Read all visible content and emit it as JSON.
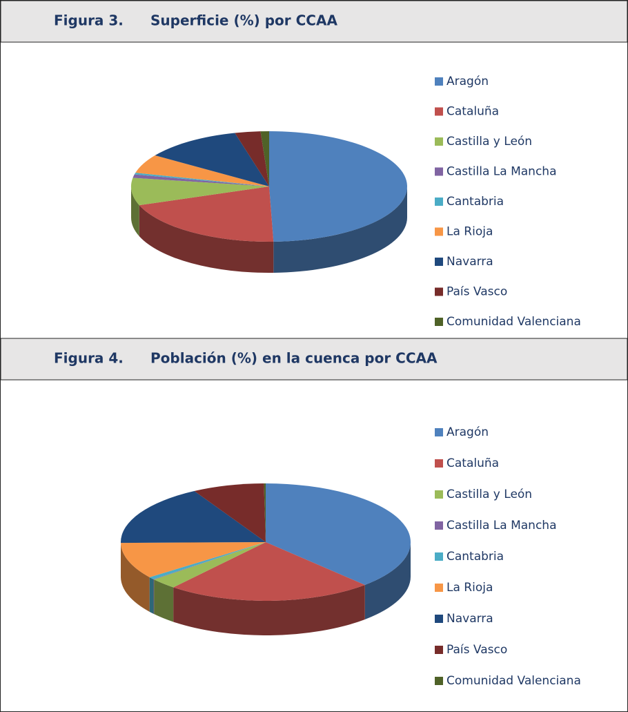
{
  "chart_data": [
    {
      "type": "pie",
      "figure_label": "Figura 3.",
      "title": "Superficie (%) por CCAA",
      "categories": [
        "Aragón",
        "Cataluña",
        "Castilla y León",
        "Castilla La Mancha",
        "Cantabria",
        "La Rioja",
        "Navarra",
        "País Vasco",
        "Comunidad Valenciana"
      ],
      "values": [
        49.5,
        20,
        8,
        1,
        0.5,
        5.5,
        11.5,
        3,
        1
      ],
      "colors": [
        "#4f81bd",
        "#c0504d",
        "#9bbb59",
        "#8064a2",
        "#4bacc6",
        "#f79646",
        "#1f497d",
        "#772c2a",
        "#4f6228"
      ]
    },
    {
      "type": "pie",
      "figure_label": "Figura 4.",
      "title": "Población (%) en la cuenca por CCAA",
      "categories": [
        "Aragón",
        "Cataluña",
        "Castilla y León",
        "Castilla La Mancha",
        "Cantabria",
        "La Rioja",
        "Navarra",
        "País Vasco",
        "Comunidad Valenciana"
      ],
      "values": [
        38,
        23,
        3,
        0.1,
        0.7,
        10,
        17,
        8,
        0.2
      ],
      "colors": [
        "#4f81bd",
        "#c0504d",
        "#9bbb59",
        "#8064a2",
        "#4bacc6",
        "#f79646",
        "#1f497d",
        "#772c2a",
        "#4f6228"
      ]
    }
  ]
}
